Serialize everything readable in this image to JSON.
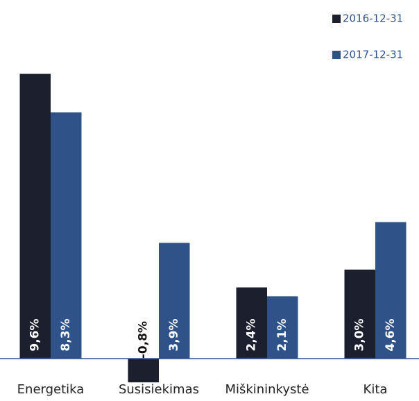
{
  "chart_data": {
    "type": "bar",
    "categories": [
      "Energetika",
      "Susisiekimas",
      "Miškininkystė",
      "Kita"
    ],
    "series": [
      {
        "name": "2016-12-31",
        "color": "#1b1f2e",
        "values": [
          9.6,
          -0.8,
          2.4,
          3.0
        ],
        "value_labels": [
          "9,6%",
          "-0,8%",
          "2,4%",
          "3,0%"
        ]
      },
      {
        "name": "2017-12-31",
        "color": "#2f5288",
        "values": [
          8.3,
          3.9,
          2.1,
          4.6
        ],
        "value_labels": [
          "8,3%",
          "3,9%",
          "2,1%",
          "4,6%"
        ]
      }
    ],
    "ylim": [
      -1.4,
      12
    ],
    "legend": "top-right"
  }
}
